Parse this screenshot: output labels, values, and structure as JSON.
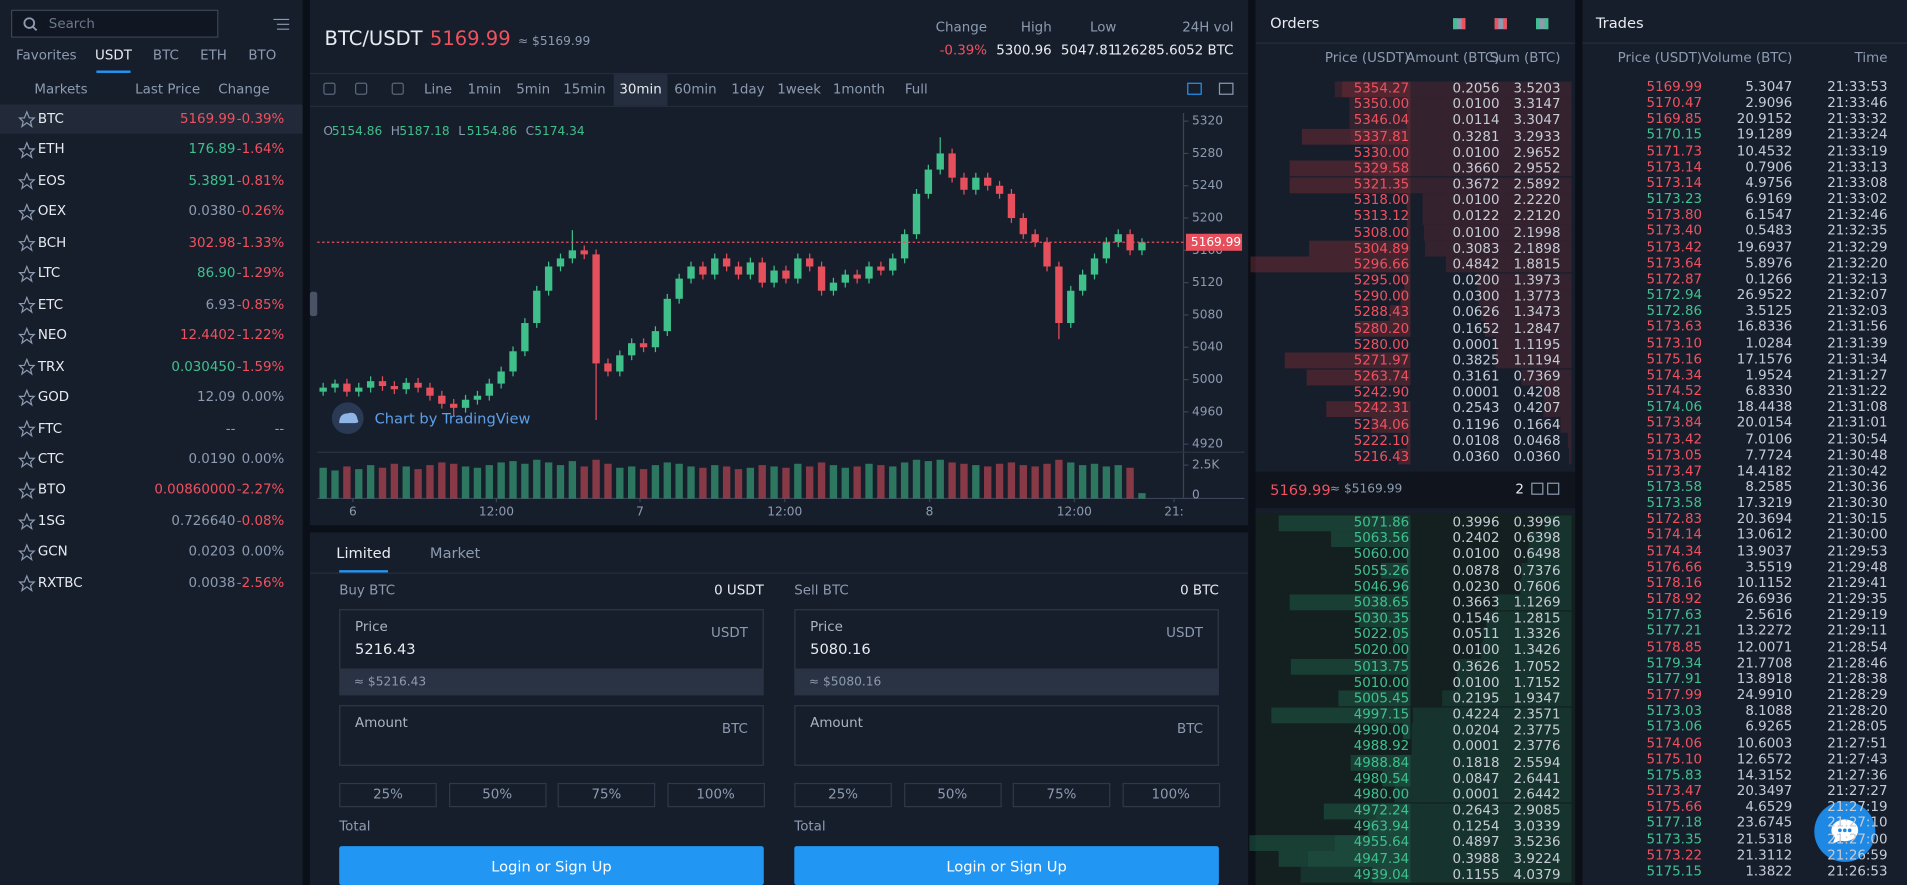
{
  "sidebar": {
    "search_placeholder": "Search",
    "tabs": [
      "Favorites",
      "USDT",
      "BTC",
      "ETH",
      "BTO"
    ],
    "columns": [
      "Markets",
      "Last Price",
      "Change"
    ],
    "markets": [
      [
        "BTC",
        "5169.99",
        "-0.39%"
      ],
      [
        "ETH",
        "176.89",
        "-1.64%"
      ],
      [
        "EOS",
        "5.3891",
        "-0.81%"
      ],
      [
        "OEX",
        "0.0380",
        "-0.26%"
      ],
      [
        "BCH",
        "302.98",
        "-1.33%"
      ],
      [
        "LTC",
        "86.90",
        "-1.29%"
      ],
      [
        "ETC",
        "6.93",
        "-0.85%"
      ],
      [
        "NEO",
        "12.4402",
        "-1.22%"
      ],
      [
        "TRX",
        "0.030450",
        "-1.59%"
      ],
      [
        "GOD",
        "12.09",
        "0.00%"
      ],
      [
        "FTC",
        "--",
        "--"
      ],
      [
        "CTC",
        "0.0190",
        "0.00%"
      ],
      [
        "BTO",
        "0.00860000",
        "-2.27%"
      ],
      [
        "1SG",
        "0.726640",
        "-0.08%"
      ],
      [
        "GCN",
        "0.0203",
        "0.00%"
      ],
      [
        "RXTBC",
        "0.0038",
        "-2.56%"
      ]
    ],
    "price_dirs": [
      "down",
      "up",
      "up",
      "flat",
      "down",
      "up",
      "flat",
      "down",
      "up",
      "flat",
      "flat",
      "flat",
      "down",
      "flat",
      "flat",
      "flat"
    ]
  },
  "header": {
    "pair": "BTC/USDT",
    "price": "5169.99",
    "price_approx": "≈ $5169.99",
    "stats": [
      [
        "Change",
        "-0.39%"
      ],
      [
        "High",
        "5300.96"
      ],
      [
        "Low",
        "5047.81"
      ],
      [
        "24H vol",
        "126285.6052 BTC"
      ]
    ]
  },
  "toolbar": {
    "intervals": [
      "Line",
      "1min",
      "5min",
      "15min",
      "30min",
      "60min",
      "1day",
      "1week",
      "1month",
      "Full"
    ]
  },
  "chart_data": {
    "type": "candlestick",
    "watermark": "Chart by TradingView",
    "ohlc_legend": [
      [
        "O",
        "5154.86"
      ],
      [
        "H",
        "5187.18"
      ],
      [
        "L",
        "5154.86"
      ],
      [
        "C",
        "5174.34"
      ]
    ],
    "up_color": "#3fbf8a",
    "down_color": "#e5505c",
    "candles": [
      [
        4985,
        4996,
        4980,
        4990
      ],
      [
        4990,
        5000,
        4984,
        4995
      ],
      [
        4995,
        5001,
        4979,
        4985
      ],
      [
        4985,
        4996,
        4979,
        4990
      ],
      [
        4990,
        5004,
        4984,
        4998
      ],
      [
        4998,
        5004,
        4986,
        4992
      ],
      [
        4992,
        4998,
        4982,
        4988
      ],
      [
        4988,
        5002,
        4982,
        4996
      ],
      [
        4996,
        5002,
        4984,
        4990
      ],
      [
        4990,
        4996,
        4974,
        4980
      ],
      [
        4980,
        4986,
        4964,
        4970
      ],
      [
        4970,
        4976,
        4955,
        4965
      ],
      [
        4965,
        4981,
        4959,
        4975
      ],
      [
        4975,
        4986,
        4969,
        4980
      ],
      [
        4980,
        5001,
        4974,
        4995
      ],
      [
        4995,
        5016,
        4989,
        5010
      ],
      [
        5010,
        5041,
        5004,
        5035
      ],
      [
        5035,
        5076,
        5029,
        5070
      ],
      [
        5070,
        5116,
        5064,
        5110
      ],
      [
        5110,
        5146,
        5104,
        5140
      ],
      [
        5140,
        5156,
        5134,
        5150
      ],
      [
        5150,
        5185,
        5144,
        5160
      ],
      [
        5160,
        5166,
        5149,
        5155
      ],
      [
        5155,
        5161,
        4950,
        5020
      ],
      [
        5020,
        5026,
        5004,
        5010
      ],
      [
        5010,
        5036,
        5004,
        5030
      ],
      [
        5030,
        5051,
        5024,
        5045
      ],
      [
        5045,
        5051,
        5034,
        5040
      ],
      [
        5040,
        5066,
        5034,
        5060
      ],
      [
        5060,
        5106,
        5054,
        5100
      ],
      [
        5100,
        5131,
        5094,
        5125
      ],
      [
        5125,
        5146,
        5119,
        5140
      ],
      [
        5140,
        5146,
        5124,
        5130
      ],
      [
        5130,
        5156,
        5124,
        5150
      ],
      [
        5150,
        5156,
        5134,
        5140
      ],
      [
        5140,
        5146,
        5124,
        5130
      ],
      [
        5130,
        5151,
        5124,
        5145
      ],
      [
        5145,
        5151,
        5114,
        5120
      ],
      [
        5120,
        5141,
        5114,
        5135
      ],
      [
        5135,
        5141,
        5119,
        5125
      ],
      [
        5125,
        5156,
        5119,
        5150
      ],
      [
        5150,
        5156,
        5134,
        5140
      ],
      [
        5140,
        5146,
        5104,
        5110
      ],
      [
        5110,
        5126,
        5104,
        5120
      ],
      [
        5120,
        5136,
        5114,
        5130
      ],
      [
        5130,
        5136,
        5119,
        5125
      ],
      [
        5125,
        5146,
        5119,
        5140
      ],
      [
        5140,
        5146,
        5129,
        5135
      ],
      [
        5135,
        5156,
        5129,
        5150
      ],
      [
        5150,
        5186,
        5144,
        5180
      ],
      [
        5180,
        5236,
        5174,
        5230
      ],
      [
        5230,
        5266,
        5224,
        5260
      ],
      [
        5260,
        5300,
        5254,
        5280
      ],
      [
        5280,
        5286,
        5244,
        5250
      ],
      [
        5250,
        5256,
        5229,
        5235
      ],
      [
        5235,
        5256,
        5229,
        5250
      ],
      [
        5250,
        5256,
        5234,
        5240
      ],
      [
        5240,
        5246,
        5224,
        5230
      ],
      [
        5230,
        5236,
        5194,
        5200
      ],
      [
        5200,
        5206,
        5174,
        5180
      ],
      [
        5180,
        5186,
        5164,
        5170
      ],
      [
        5170,
        5176,
        5134,
        5140
      ],
      [
        5140,
        5146,
        5050,
        5070
      ],
      [
        5070,
        5116,
        5064,
        5110
      ],
      [
        5110,
        5136,
        5104,
        5130
      ],
      [
        5130,
        5156,
        5124,
        5150
      ],
      [
        5150,
        5176,
        5144,
        5170
      ],
      [
        5170,
        5186,
        5164,
        5180
      ],
      [
        5180,
        5186,
        5154,
        5160
      ],
      [
        5160,
        5175,
        5154,
        5169.99
      ]
    ],
    "volume": [
      2300,
      2100,
      2400,
      2200,
      2500,
      2300,
      2600,
      2400,
      2200,
      2500,
      2700,
      2600,
      2400,
      2300,
      2500,
      2700,
      2800,
      2600,
      2900,
      2700,
      2500,
      2800,
      2400,
      2900,
      2600,
      2300,
      2400,
      2200,
      2500,
      2700,
      2600,
      2400,
      2300,
      2500,
      2400,
      2200,
      2300,
      2500,
      2400,
      2300,
      2600,
      2400,
      2700,
      2500,
      2300,
      2400,
      2600,
      2500,
      2400,
      2700,
      2900,
      2800,
      2900,
      2700,
      2600,
      2500,
      2400,
      2600,
      2700,
      2500,
      2400,
      2600,
      2900,
      2700,
      2500,
      2600,
      2400,
      2500,
      2300,
      400
    ],
    "xlim": [
      -0.5,
      72.5
    ],
    "xticks": [
      {
        "value": 2.5,
        "label": "6"
      },
      {
        "value": 14.6,
        "label": "12:00"
      },
      {
        "value": 26.7,
        "label": "7"
      },
      {
        "value": 38.9,
        "label": "12:00"
      },
      {
        "value": 51.1,
        "label": "8"
      },
      {
        "value": 63.3,
        "label": "12:00"
      },
      {
        "value": 71.7,
        "label": "21:"
      }
    ],
    "ylim": [
      4910,
      5330
    ],
    "yticks": [
      4920,
      4960,
      5000,
      5040,
      5080,
      5120,
      5160,
      5200,
      5240,
      5280,
      5320
    ],
    "volume_ylim": [
      0,
      3100
    ],
    "volume_ticks": [
      {
        "value": 2500,
        "label": "2.5K"
      },
      0
    ]
  },
  "order_form": {
    "tabs": [
      "Limited",
      "Market"
    ],
    "buy": {
      "title": "Buy BTC",
      "balance": "0 USDT",
      "price_label": "Price",
      "price_unit": "USDT",
      "price": "5216.43",
      "price_approx": "≈ $5216.43",
      "amount_label": "Amount",
      "amount_unit": "BTC",
      "percents": [
        "25%",
        "50%",
        "75%",
        "100%"
      ],
      "total_label": "Total",
      "button": "Login or Sign Up"
    },
    "sell": {
      "title": "Sell BTC",
      "balance": "0 BTC",
      "price_label": "Price",
      "price_unit": "USDT",
      "price": "5080.16",
      "price_approx": "≈ $5080.16",
      "amount_label": "Amount",
      "amount_unit": "BTC",
      "percents": [
        "25%",
        "50%",
        "75%",
        "100%"
      ],
      "total_label": "Total",
      "button": "Login or Sign Up"
    }
  },
  "orders": {
    "title": "Orders",
    "columns": [
      "Price (USDT)",
      "Amount (BTC)",
      "Sum (BTC)"
    ],
    "asks": [
      [
        "5354.27",
        "0.2056",
        "3.5203"
      ],
      [
        "5350.00",
        "0.0100",
        "3.3147"
      ],
      [
        "5346.04",
        "0.0114",
        "3.3047"
      ],
      [
        "5337.81",
        "0.3281",
        "3.2933"
      ],
      [
        "5330.00",
        "0.0100",
        "2.9652"
      ],
      [
        "5329.58",
        "0.3660",
        "2.9552"
      ],
      [
        "5321.35",
        "0.3672",
        "2.5892"
      ],
      [
        "5318.00",
        "0.0100",
        "2.2220"
      ],
      [
        "5313.12",
        "0.0122",
        "2.2120"
      ],
      [
        "5308.00",
        "0.0100",
        "2.1998"
      ],
      [
        "5304.89",
        "0.3083",
        "2.1898"
      ],
      [
        "5296.66",
        "0.4842",
        "1.8815"
      ],
      [
        "5295.00",
        "0.0200",
        "1.3973"
      ],
      [
        "5290.00",
        "0.0300",
        "1.3773"
      ],
      [
        "5288.43",
        "0.0626",
        "1.3473"
      ],
      [
        "5280.20",
        "0.1652",
        "1.2847"
      ],
      [
        "5280.00",
        "0.0001",
        "1.1195"
      ],
      [
        "5271.97",
        "0.3825",
        "1.1194"
      ],
      [
        "5263.74",
        "0.3161",
        "0.7369"
      ],
      [
        "5242.90",
        "0.0001",
        "0.4208"
      ],
      [
        "5242.31",
        "0.2543",
        "0.4207"
      ],
      [
        "5234.06",
        "0.1196",
        "0.1664"
      ],
      [
        "5222.10",
        "0.0108",
        "0.0468"
      ],
      [
        "5216.43",
        "0.0360",
        "0.0360"
      ]
    ],
    "mid": {
      "price": "5169.99",
      "approx": "≈ $5169.99",
      "precision": "2"
    },
    "bids": [
      [
        "5071.86",
        "0.3996",
        "0.3996"
      ],
      [
        "5063.56",
        "0.2402",
        "0.6398"
      ],
      [
        "5060.00",
        "0.0100",
        "0.6498"
      ],
      [
        "5055.26",
        "0.0878",
        "0.7376"
      ],
      [
        "5046.96",
        "0.0230",
        "0.7606"
      ],
      [
        "5038.65",
        "0.3663",
        "1.1269"
      ],
      [
        "5030.35",
        "0.1546",
        "1.2815"
      ],
      [
        "5022.05",
        "0.0511",
        "1.3326"
      ],
      [
        "5020.00",
        "0.0100",
        "1.3426"
      ],
      [
        "5013.75",
        "0.3626",
        "1.7052"
      ],
      [
        "5010.00",
        "0.0100",
        "1.7152"
      ],
      [
        "5005.45",
        "0.2195",
        "1.9347"
      ],
      [
        "4997.15",
        "0.4224",
        "2.3571"
      ],
      [
        "4990.00",
        "0.0204",
        "2.3775"
      ],
      [
        "4988.92",
        "0.0001",
        "2.3776"
      ],
      [
        "4988.84",
        "0.1818",
        "2.5594"
      ],
      [
        "4980.54",
        "0.0847",
        "2.6441"
      ],
      [
        "4980.00",
        "0.0001",
        "2.6442"
      ],
      [
        "4972.24",
        "0.2643",
        "2.9085"
      ],
      [
        "4963.94",
        "0.1254",
        "3.0339"
      ],
      [
        "4955.64",
        "0.4897",
        "3.5236"
      ],
      [
        "4947.34",
        "0.3988",
        "3.9224"
      ],
      [
        "4939.04",
        "0.1155",
        "4.0379"
      ]
    ]
  },
  "trades": {
    "title": "Trades",
    "columns": [
      "Price (USDT)",
      "Volume (BTC)",
      "Time"
    ],
    "rows": [
      [
        "5169.99",
        "5.3047",
        "21:33:53"
      ],
      [
        "5170.47",
        "2.9096",
        "21:33:46"
      ],
      [
        "5169.85",
        "20.9152",
        "21:33:32"
      ],
      [
        "5170.15",
        "19.1289",
        "21:33:24"
      ],
      [
        "5171.73",
        "10.4532",
        "21:33:19"
      ],
      [
        "5173.14",
        "0.7906",
        "21:33:13"
      ],
      [
        "5173.14",
        "4.9756",
        "21:33:08"
      ],
      [
        "5173.23",
        "6.9169",
        "21:33:02"
      ],
      [
        "5173.80",
        "6.1547",
        "21:32:46"
      ],
      [
        "5173.40",
        "0.5483",
        "21:32:35"
      ],
      [
        "5173.42",
        "19.6937",
        "21:32:29"
      ],
      [
        "5173.64",
        "5.8976",
        "21:32:20"
      ],
      [
        "5172.87",
        "0.1266",
        "21:32:13"
      ],
      [
        "5172.94",
        "26.9522",
        "21:32:07"
      ],
      [
        "5172.86",
        "3.5125",
        "21:32:03"
      ],
      [
        "5173.63",
        "16.8336",
        "21:31:56"
      ],
      [
        "5173.10",
        "1.0284",
        "21:31:39"
      ],
      [
        "5175.16",
        "17.1576",
        "21:31:34"
      ],
      [
        "5174.34",
        "1.9524",
        "21:31:27"
      ],
      [
        "5174.52",
        "6.8330",
        "21:31:22"
      ],
      [
        "5174.06",
        "18.4438",
        "21:31:08"
      ],
      [
        "5173.84",
        "20.0154",
        "21:31:01"
      ],
      [
        "5173.42",
        "7.0106",
        "21:30:54"
      ],
      [
        "5173.05",
        "7.7724",
        "21:30:48"
      ],
      [
        "5173.47",
        "14.4182",
        "21:30:42"
      ],
      [
        "5173.58",
        "8.2585",
        "21:30:36"
      ],
      [
        "5173.58",
        "17.3219",
        "21:30:30"
      ],
      [
        "5172.83",
        "20.3694",
        "21:30:15"
      ],
      [
        "5174.14",
        "13.0612",
        "21:30:00"
      ],
      [
        "5174.34",
        "13.9037",
        "21:29:53"
      ],
      [
        "5176.66",
        "3.5519",
        "21:29:48"
      ],
      [
        "5178.16",
        "10.1152",
        "21:29:41"
      ],
      [
        "5178.92",
        "26.6936",
        "21:29:35"
      ],
      [
        "5177.63",
        "2.5616",
        "21:29:19"
      ],
      [
        "5177.21",
        "13.2272",
        "21:29:11"
      ],
      [
        "5178.85",
        "12.0071",
        "21:28:54"
      ],
      [
        "5179.34",
        "21.7708",
        "21:28:46"
      ],
      [
        "5177.91",
        "13.8918",
        "21:28:38"
      ],
      [
        "5177.99",
        "24.9910",
        "21:28:29"
      ],
      [
        "5173.03",
        "8.1088",
        "21:28:20"
      ],
      [
        "5173.06",
        "6.9265",
        "21:28:05"
      ],
      [
        "5174.06",
        "10.6003",
        "21:27:51"
      ],
      [
        "5175.10",
        "12.6572",
        "21:27:43"
      ],
      [
        "5175.83",
        "14.3152",
        "21:27:36"
      ],
      [
        "5173.47",
        "20.3497",
        "21:27:27"
      ],
      [
        "5175.66",
        "4.6529",
        "21:27:19"
      ],
      [
        "5177.18",
        "23.6745",
        "21:27:10"
      ],
      [
        "5173.35",
        "21.5318",
        "21:27:00"
      ],
      [
        "5173.22",
        "21.3112",
        "21:26:59"
      ],
      [
        "5175.15",
        "1.3822",
        "21:26:53"
      ]
    ],
    "dirs": [
      "down",
      "down",
      "down",
      "up",
      "down",
      "down",
      "down",
      "up",
      "down",
      "down",
      "down",
      "down",
      "down",
      "up",
      "up",
      "down",
      "down",
      "down",
      "down",
      "down",
      "up",
      "down",
      "down",
      "down",
      "down",
      "up",
      "up",
      "down",
      "down",
      "down",
      "down",
      "down",
      "down",
      "up",
      "up",
      "down",
      "up",
      "up",
      "down",
      "up",
      "up",
      "down",
      "down",
      "up",
      "down",
      "down",
      "up",
      "up",
      "down",
      "up"
    ]
  }
}
